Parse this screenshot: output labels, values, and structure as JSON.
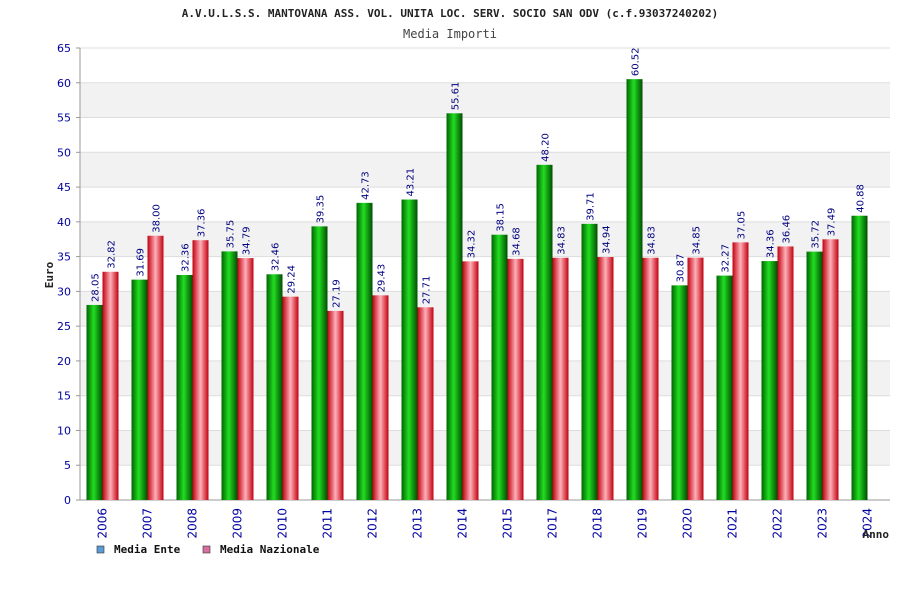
{
  "chart_data": {
    "type": "bar",
    "title": "A.V.U.L.S.S. MANTOVANA ASS. VOL. UNITA LOC. SERV. SOCIO SAN ODV (c.f.93037240202)",
    "subtitle": "Media Importi",
    "xlabel": "Anno",
    "ylabel": "Euro",
    "ylim": [
      0,
      65
    ],
    "ytick_step": 5,
    "yticks": [
      "0",
      "5",
      "10",
      "15",
      "20",
      "25",
      "30",
      "35",
      "40",
      "45",
      "50",
      "55",
      "60",
      "65"
    ],
    "categories": [
      "2006",
      "2007",
      "2008",
      "2009",
      "2010",
      "2011",
      "2012",
      "2013",
      "2014",
      "2015",
      "2017",
      "2018",
      "2019",
      "2020",
      "2021",
      "2022",
      "2023",
      "2024"
    ],
    "series": [
      {
        "name": "Media Ente",
        "color": "#00a000",
        "legend_color": "#5b9bd5",
        "values": [
          28.05,
          31.69,
          32.36,
          35.75,
          32.46,
          39.35,
          42.73,
          43.21,
          55.61,
          38.15,
          48.2,
          39.71,
          60.52,
          30.87,
          32.27,
          34.36,
          35.72,
          40.88
        ],
        "labels": [
          "28.05",
          "31.69",
          "32.36",
          "35.75",
          "32.46",
          "39.35",
          "42.73",
          "43.21",
          "55.61",
          "38.15",
          "48.20",
          "39.71",
          "60.52",
          "30.87",
          "32.27",
          "34.36",
          "35.72",
          "40.88"
        ]
      },
      {
        "name": "Media Nazionale",
        "color": "#e01020",
        "legend_color": "#d66fa0",
        "values": [
          32.82,
          38.0,
          37.36,
          34.79,
          29.24,
          27.19,
          29.43,
          27.71,
          34.32,
          34.68,
          34.83,
          34.94,
          34.83,
          34.85,
          37.05,
          36.46,
          37.49,
          null
        ],
        "labels": [
          "32.82",
          "38.00",
          "37.36",
          "34.79",
          "29.24",
          "27.19",
          "29.43",
          "27.71",
          "34.32",
          "34.68",
          "34.83",
          "34.94",
          "34.83",
          "34.85",
          "37.05",
          "36.46",
          "37.49",
          null
        ]
      }
    ],
    "grid": true,
    "legend_position": "bottom-left"
  }
}
